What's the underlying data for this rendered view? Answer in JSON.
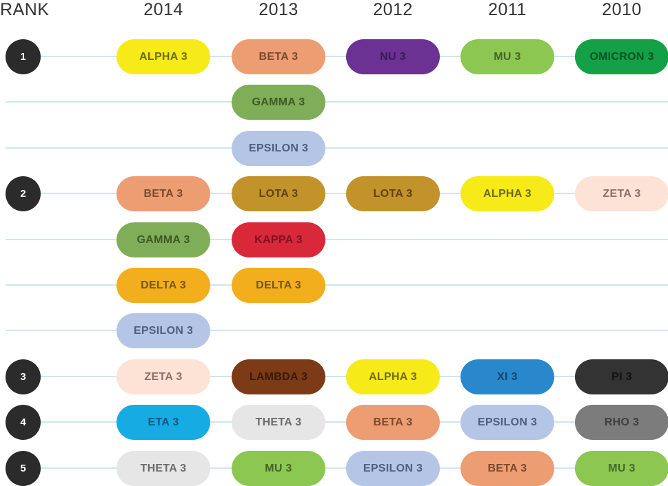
{
  "chart_data": {
    "type": "table",
    "rank_header": "RANK",
    "columns": [
      "2014",
      "2013",
      "2012",
      "2011",
      "2010"
    ],
    "rows": [
      {
        "rank": "1",
        "cells": [
          "ALPHA 3",
          "BETA 3",
          "NU 3",
          "MU 3",
          "OMICRON 3"
        ]
      },
      {
        "rank": "",
        "cells": [
          "",
          "GAMMA 3",
          "",
          "",
          ""
        ]
      },
      {
        "rank": "",
        "cells": [
          "",
          "EPSILON 3",
          "",
          "",
          ""
        ]
      },
      {
        "rank": "2",
        "cells": [
          "BETA 3",
          "LOTA 3",
          "LOTA 3",
          "ALPHA 3",
          "ZETA 3"
        ]
      },
      {
        "rank": "",
        "cells": [
          "GAMMA 3",
          "KAPPA 3",
          "",
          "",
          ""
        ]
      },
      {
        "rank": "",
        "cells": [
          "DELTA 3",
          "DELTA 3",
          "",
          "",
          ""
        ]
      },
      {
        "rank": "",
        "cells": [
          "EPSILON 3",
          "",
          "",
          "",
          ""
        ]
      },
      {
        "rank": "3",
        "cells": [
          "ZETA 3",
          "LAMBDA 3",
          "ALPHA 3",
          "XI 3",
          "PI 3"
        ]
      },
      {
        "rank": "4",
        "cells": [
          "ETA 3",
          "THETA 3",
          "BETA 3",
          "EPSILON 3",
          "RHO 3"
        ]
      },
      {
        "rank": "5",
        "cells": [
          "THETA 3",
          "MU 3",
          "EPSILON 3",
          "BETA 3",
          "MU 3"
        ]
      }
    ],
    "item_colors": {
      "ALPHA 3": {
        "bg": "#f6ea19",
        "fg": "#6f6a1a"
      },
      "BETA 3": {
        "bg": "#ed9d72",
        "fg": "#7a4a30"
      },
      "GAMMA 3": {
        "bg": "#7fad58",
        "fg": "#3d5a26"
      },
      "DELTA 3": {
        "bg": "#f2ae1d",
        "fg": "#7a5510"
      },
      "EPSILON 3": {
        "bg": "#b4c5e6",
        "fg": "#4f5f7e"
      },
      "ZETA 3": {
        "bg": "#fde3d5",
        "fg": "#8a7165"
      },
      "ETA 3": {
        "bg": "#16ace3",
        "fg": "#0c5a79"
      },
      "THETA 3": {
        "bg": "#e6e6e6",
        "fg": "#6b6b6b"
      },
      "LOTA 3": {
        "bg": "#c2922b",
        "fg": "#5d4310"
      },
      "KAPPA 3": {
        "bg": "#d8283a",
        "fg": "#7a1420"
      },
      "LAMBDA 3": {
        "bg": "#7c3a16",
        "fg": "#3a1a08"
      },
      "MU 3": {
        "bg": "#8cc751",
        "fg": "#45662a"
      },
      "NU 3": {
        "bg": "#6b3294",
        "fg": "#3a1a55"
      },
      "XI 3": {
        "bg": "#2888cb",
        "fg": "#15446a"
      },
      "OMICRON 3": {
        "bg": "#14a047",
        "fg": "#085226"
      },
      "PI 3": {
        "bg": "#333333",
        "fg": "#111111"
      },
      "RHO 3": {
        "bg": "#7c7c7c",
        "fg": "#3f3f3f"
      }
    },
    "row_line_color": "#cde6ef",
    "rank_dot_color": "#2b2b2b"
  }
}
